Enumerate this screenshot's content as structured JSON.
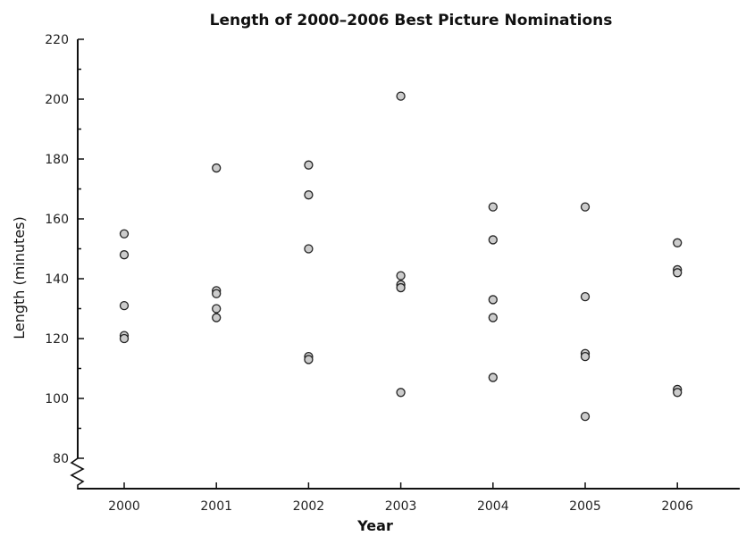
{
  "chart_data": {
    "type": "scatter",
    "title": "Length of 2000–2006 Best Picture Nominations",
    "xlabel": "Year",
    "ylabel": "Length (minutes)",
    "categories": [
      "2000",
      "2001",
      "2002",
      "2003",
      "2004",
      "2005",
      "2006"
    ],
    "ylim": [
      80,
      220
    ],
    "yticks": [
      80,
      100,
      120,
      140,
      160,
      180,
      200,
      220
    ],
    "y_axis_break": true,
    "grid": false,
    "marker_color": "#cccccc",
    "series": [
      {
        "points": [
          {
            "x": "2000",
            "y": 155
          },
          {
            "x": "2000",
            "y": 148
          },
          {
            "x": "2000",
            "y": 131
          },
          {
            "x": "2000",
            "y": 121
          },
          {
            "x": "2000",
            "y": 120
          },
          {
            "x": "2001",
            "y": 177
          },
          {
            "x": "2001",
            "y": 136
          },
          {
            "x": "2001",
            "y": 135
          },
          {
            "x": "2001",
            "y": 130
          },
          {
            "x": "2001",
            "y": 127
          },
          {
            "x": "2002",
            "y": 178
          },
          {
            "x": "2002",
            "y": 168
          },
          {
            "x": "2002",
            "y": 150
          },
          {
            "x": "2002",
            "y": 114
          },
          {
            "x": "2002",
            "y": 113
          },
          {
            "x": "2003",
            "y": 201
          },
          {
            "x": "2003",
            "y": 141
          },
          {
            "x": "2003",
            "y": 138
          },
          {
            "x": "2003",
            "y": 137
          },
          {
            "x": "2003",
            "y": 102
          },
          {
            "x": "2004",
            "y": 164
          },
          {
            "x": "2004",
            "y": 153
          },
          {
            "x": "2004",
            "y": 133
          },
          {
            "x": "2004",
            "y": 127
          },
          {
            "x": "2004",
            "y": 107
          },
          {
            "x": "2005",
            "y": 164
          },
          {
            "x": "2005",
            "y": 134
          },
          {
            "x": "2005",
            "y": 115
          },
          {
            "x": "2005",
            "y": 114
          },
          {
            "x": "2005",
            "y": 94
          },
          {
            "x": "2006",
            "y": 152
          },
          {
            "x": "2006",
            "y": 143
          },
          {
            "x": "2006",
            "y": 142
          },
          {
            "x": "2006",
            "y": 103
          },
          {
            "x": "2006",
            "y": 102
          }
        ]
      }
    ]
  }
}
